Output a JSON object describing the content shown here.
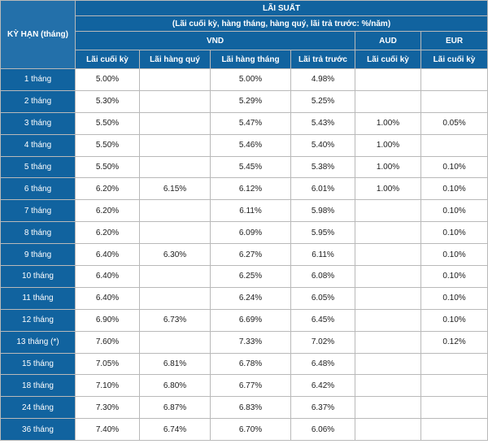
{
  "header": {
    "term_label": "KỲ HẠN (tháng)",
    "title": "LÃI SUẤT",
    "subtitle": "(Lãi cuối kỳ, hàng tháng, hàng quý, lãi trả trước: %/năm)",
    "currencies": [
      "VND",
      "AUD",
      "EUR"
    ],
    "columns": [
      "Lãi cuối kỳ",
      "Lãi hàng quý",
      "Lãi hàng tháng",
      "Lãi trả trước",
      "Lãi cuối kỳ",
      "Lãi cuối kỳ"
    ]
  },
  "rows": [
    {
      "term": "1 tháng",
      "cells": [
        "5.00%",
        "",
        "5.00%",
        "4.98%",
        "",
        ""
      ]
    },
    {
      "term": "2 tháng",
      "cells": [
        "5.30%",
        "",
        "5.29%",
        "5.25%",
        "",
        ""
      ]
    },
    {
      "term": "3 tháng",
      "cells": [
        "5.50%",
        "",
        "5.47%",
        "5.43%",
        "1.00%",
        "0.05%"
      ]
    },
    {
      "term": "4 tháng",
      "cells": [
        "5.50%",
        "",
        "5.46%",
        "5.40%",
        "1.00%",
        ""
      ]
    },
    {
      "term": "5 tháng",
      "cells": [
        "5.50%",
        "",
        "5.45%",
        "5.38%",
        "1.00%",
        "0.10%"
      ]
    },
    {
      "term": "6 tháng",
      "cells": [
        "6.20%",
        "6.15%",
        "6.12%",
        "6.01%",
        "1.00%",
        "0.10%"
      ]
    },
    {
      "term": "7 tháng",
      "cells": [
        "6.20%",
        "",
        "6.11%",
        "5.98%",
        "",
        "0.10%"
      ]
    },
    {
      "term": "8 tháng",
      "cells": [
        "6.20%",
        "",
        "6.09%",
        "5.95%",
        "",
        "0.10%"
      ]
    },
    {
      "term": "9 tháng",
      "cells": [
        "6.40%",
        "6.30%",
        "6.27%",
        "6.11%",
        "",
        "0.10%"
      ]
    },
    {
      "term": "10 tháng",
      "cells": [
        "6.40%",
        "",
        "6.25%",
        "6.08%",
        "",
        "0.10%"
      ]
    },
    {
      "term": "11 tháng",
      "cells": [
        "6.40%",
        "",
        "6.24%",
        "6.05%",
        "",
        "0.10%"
      ]
    },
    {
      "term": "12 tháng",
      "cells": [
        "6.90%",
        "6.73%",
        "6.69%",
        "6.45%",
        "",
        "0.10%"
      ]
    },
    {
      "term": "13 tháng (*)",
      "cells": [
        "7.60%",
        "",
        "7.33%",
        "7.02%",
        "",
        "0.12%"
      ]
    },
    {
      "term": "15 tháng",
      "cells": [
        "7.05%",
        "6.81%",
        "6.78%",
        "6.48%",
        "",
        ""
      ]
    },
    {
      "term": "18 tháng",
      "cells": [
        "7.10%",
        "6.80%",
        "6.77%",
        "6.42%",
        "",
        ""
      ]
    },
    {
      "term": "24 tháng",
      "cells": [
        "7.30%",
        "6.87%",
        "6.83%",
        "6.37%",
        "",
        ""
      ]
    },
    {
      "term": "36 tháng",
      "cells": [
        "7.40%",
        "6.74%",
        "6.70%",
        "6.06%",
        "",
        ""
      ]
    }
  ],
  "colors": {
    "header_bg": "#11639f",
    "header_text": "#ffffff",
    "border": "#b9b9b9"
  }
}
